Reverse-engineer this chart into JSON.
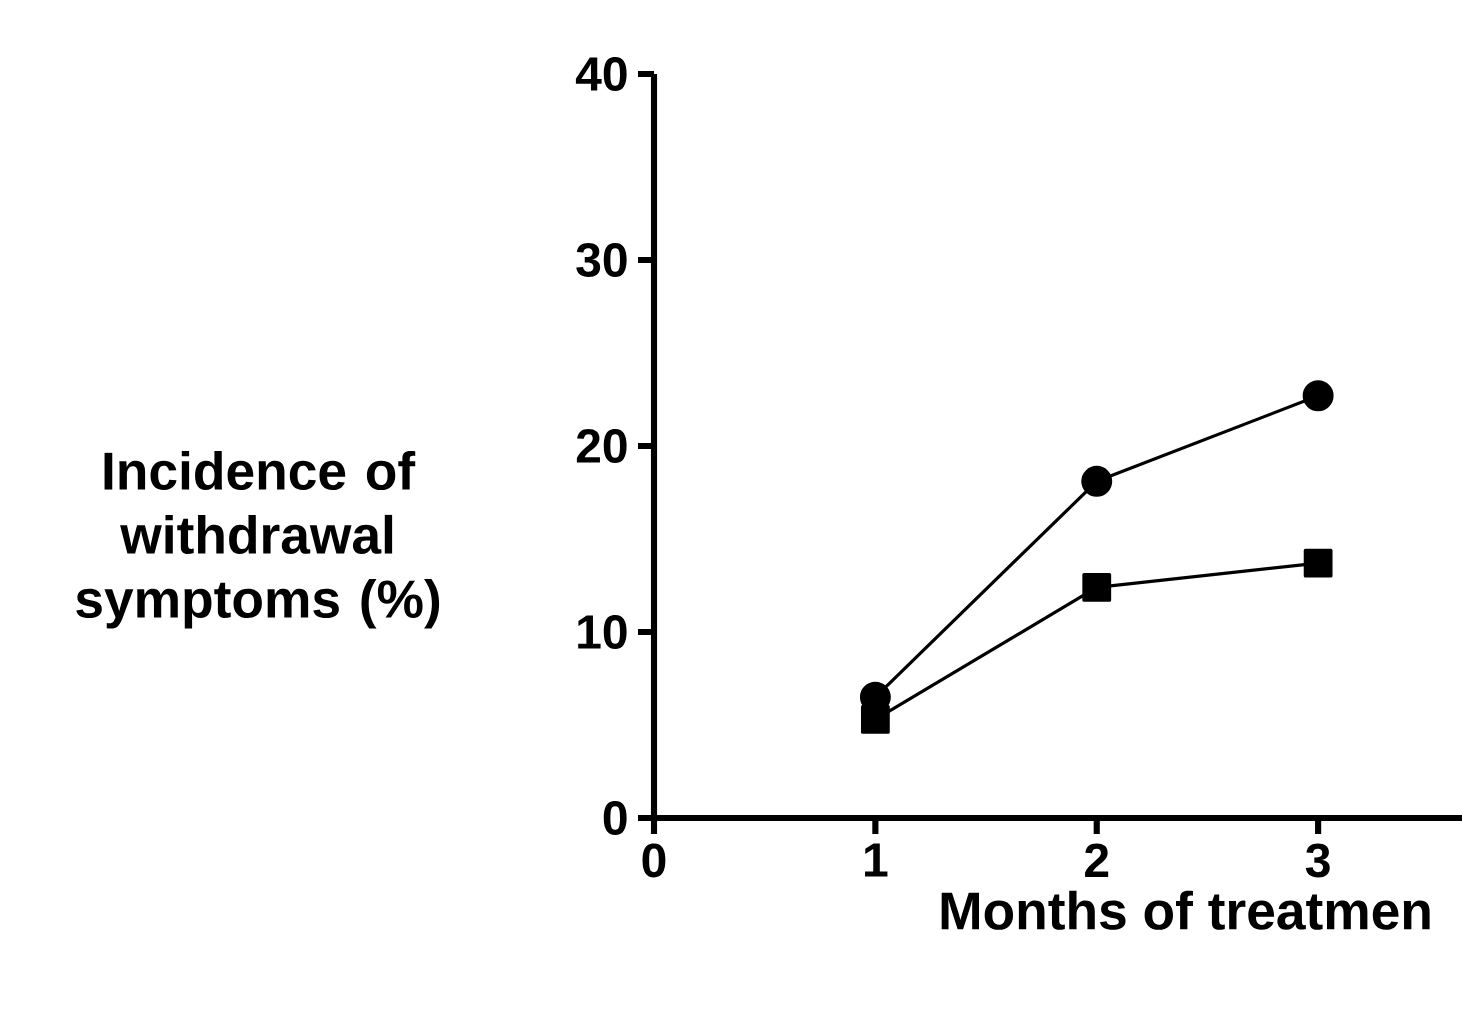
{
  "chart_data": {
    "type": "line",
    "x": [
      1,
      2,
      3
    ],
    "xlabel": "Months of treatmen",
    "ylabel": "Incidence of withdrawal symptoms (%)",
    "xlim": [
      0,
      3.65
    ],
    "xticks": [
      0,
      1,
      2,
      3
    ],
    "ylim": [
      0,
      40
    ],
    "yticks": [
      0,
      10,
      20,
      30,
      40
    ],
    "line_style": "solid",
    "series": [
      {
        "color": "#000000",
        "marker": "circle",
        "values": [
          6.5,
          18.1,
          22.7
        ]
      },
      {
        "color": "#000000",
        "marker": "square",
        "values": [
          5.3,
          12.4,
          13.7
        ]
      }
    ]
  }
}
